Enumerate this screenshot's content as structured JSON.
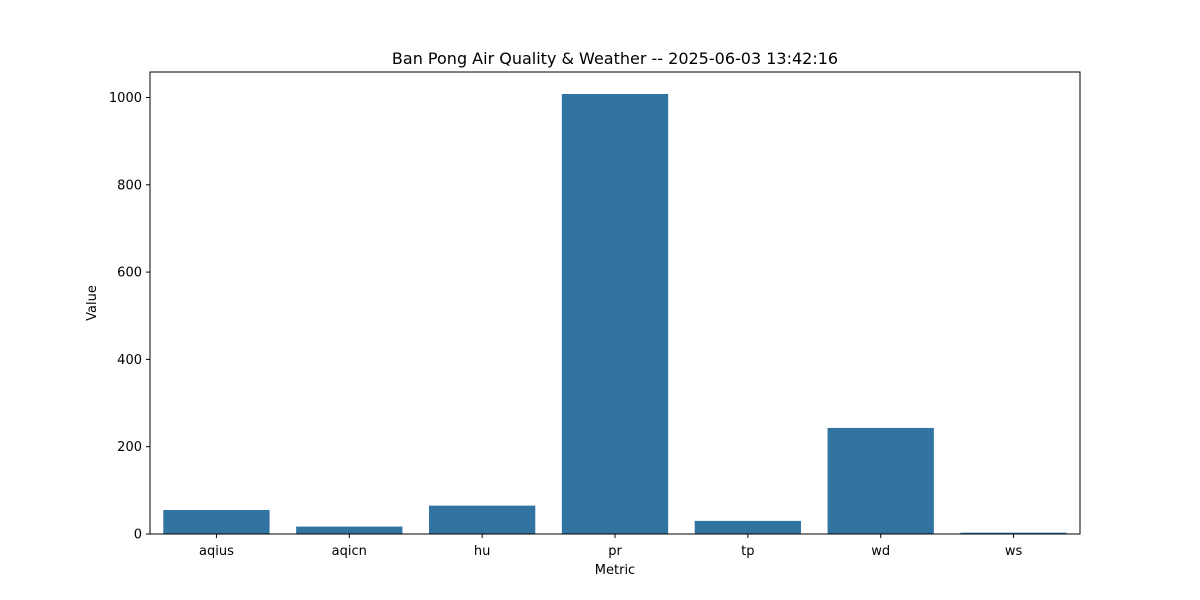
{
  "chart_data": {
    "type": "bar",
    "title": "Ban Pong Air Quality & Weather -- 2025-06-03 13:42:16",
    "xlabel": "Metric",
    "ylabel": "Value",
    "categories": [
      "aqius",
      "aqicn",
      "hu",
      "pr",
      "tp",
      "wd",
      "ws"
    ],
    "values": [
      55,
      17,
      65,
      1008,
      30,
      243,
      3
    ],
    "ylim": [
      0,
      1058.4
    ],
    "yticks": [
      "0",
      "200",
      "400",
      "600",
      "800",
      "1000"
    ],
    "grid": false,
    "legend": "none",
    "bar_color": "#3274a1",
    "frame_color": "#000000"
  }
}
